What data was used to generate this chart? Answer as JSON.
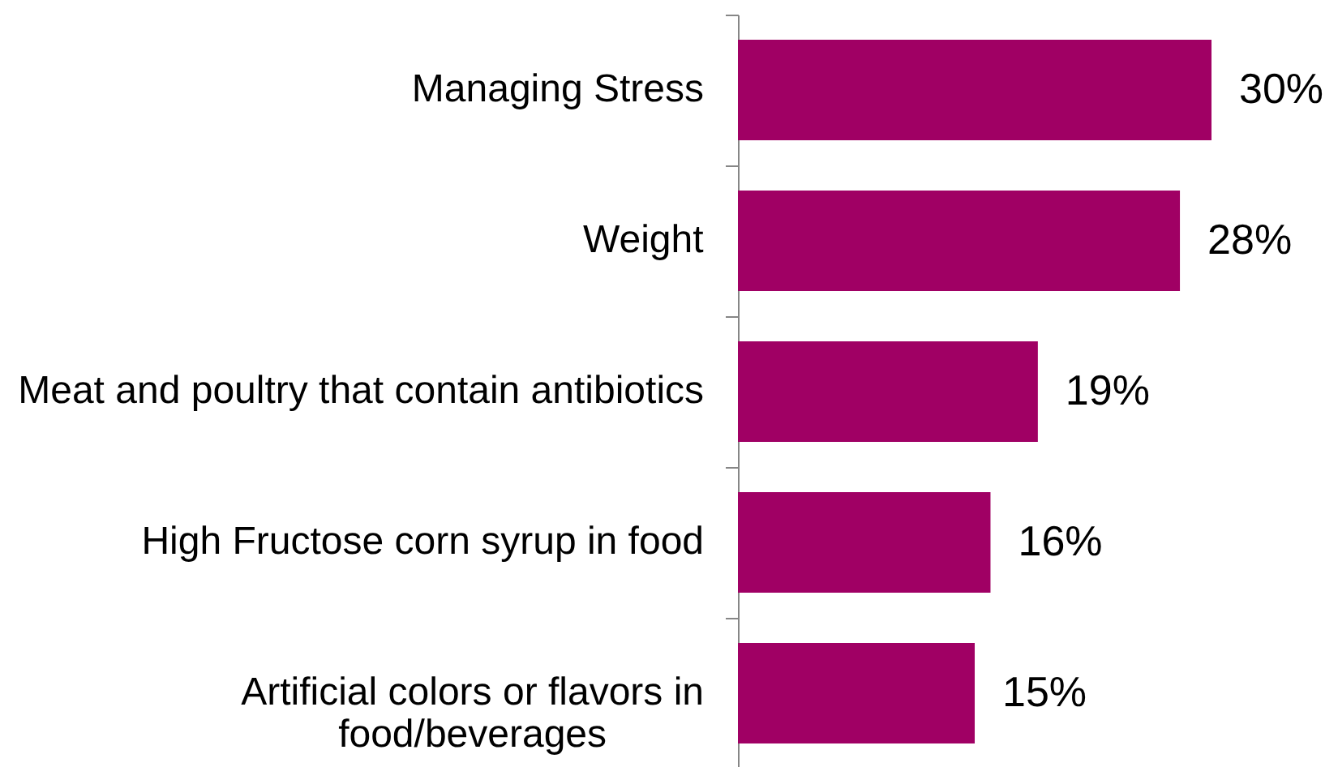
{
  "chart_data": {
    "type": "bar",
    "orientation": "horizontal",
    "categories": [
      "Managing Stress",
      "Weight",
      "Meat and poultry that contain antibiotics",
      "High Fructose corn syrup in food",
      "Artificial colors or flavors in food/beverages"
    ],
    "values": [
      30,
      28,
      19,
      16,
      15
    ],
    "value_labels": [
      "30%",
      "28%",
      "19%",
      "16%",
      "15%"
    ],
    "color": "#a00064"
  }
}
